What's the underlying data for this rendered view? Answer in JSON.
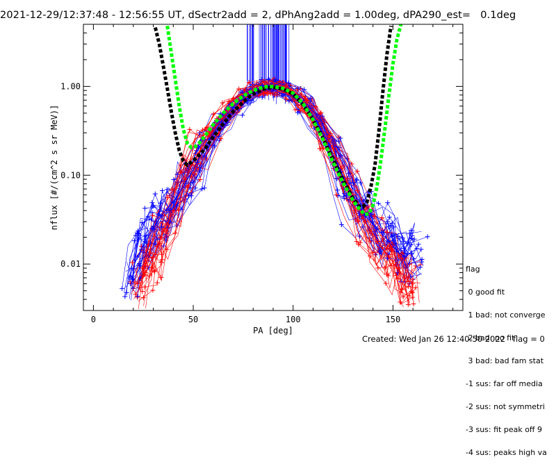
{
  "header": {
    "title": "2021-12-29/12:37:48 - 12:56:55 UT, dSectr2add = 2, dPhAng2add = 1.00deg, dPA290_est=   0.1deg"
  },
  "legend": {
    "title": "flag",
    "items": [
      " 0 good fit",
      " 1 bad: not converge",
      " 2 bad: no fit",
      " 3 bad: bad fam stat",
      "-1 sus: far off media",
      "-2 sus: not symmetri",
      "-3 sus: fit peak off 9",
      "-4 sus: peaks high va"
    ]
  },
  "footer": {
    "created": "Created: Wed Jan 26 12:40:50 2022   flag = 0"
  },
  "chart_data": {
    "type": "line",
    "title": "2021-12-29/12:37:48 - 12:56:55 UT, dSectr2add = 2, dPhAng2add = 1.00deg, dPA290_est=   0.1deg",
    "xlabel": "PA [deg]",
    "ylabel": "nflux [#/(cm^2 s sr MeV)]",
    "xlim": [
      -5,
      185
    ],
    "ylim": [
      0.003,
      5
    ],
    "yscale": "log",
    "xticks": [
      0,
      50,
      100,
      150
    ],
    "xtick_labels": [
      "0",
      "50",
      "100",
      "150"
    ],
    "yticks": [
      0.01,
      0.1,
      1.0
    ],
    "ytick_labels": [
      "0.01",
      "0.10",
      "1.00"
    ],
    "colors": {
      "red": "#ff0000",
      "blue": "#0000ff",
      "black": "#000000",
      "green": "#00ff00"
    },
    "series": [
      {
        "color": "red",
        "style": "thin lines with + markers (many measured PA distributions)",
        "x": [
          22,
          26,
          30,
          34,
          40,
          46,
          52,
          58,
          64,
          70,
          76,
          82,
          88,
          94,
          100,
          106,
          112,
          118,
          124,
          130,
          136,
          142,
          148,
          152,
          156,
          160
        ],
        "y": [
          0.006,
          0.008,
          0.012,
          0.02,
          0.04,
          0.09,
          0.17,
          0.28,
          0.42,
          0.6,
          0.8,
          0.95,
          1.0,
          0.97,
          0.85,
          0.65,
          0.42,
          0.24,
          0.12,
          0.06,
          0.03,
          0.018,
          0.012,
          0.009,
          0.007,
          0.006
        ]
      },
      {
        "color": "blue",
        "style": "thin lines with + markers (many measured PA distributions)",
        "x": [
          18,
          22,
          26,
          30,
          34,
          40,
          46,
          52,
          58,
          64,
          70,
          76,
          82,
          88,
          94,
          100,
          106,
          112,
          118,
          124,
          130,
          136,
          142,
          148,
          152,
          156,
          162
        ],
        "y": [
          0.007,
          0.012,
          0.018,
          0.025,
          0.035,
          0.05,
          0.08,
          0.14,
          0.25,
          0.4,
          0.58,
          0.78,
          0.92,
          0.98,
          0.95,
          0.83,
          0.62,
          0.4,
          0.22,
          0.11,
          0.055,
          0.035,
          0.025,
          0.018,
          0.014,
          0.012,
          0.015
        ]
      },
      {
        "name": "",
        "color": "black",
        "style": "thick dashed fit curve",
        "x": [
          31,
          33,
          35,
          37,
          39,
          41,
          43,
          45,
          47,
          49,
          52,
          56,
          60,
          65,
          70,
          75,
          80,
          85,
          88,
          91,
          95,
          100,
          105,
          110,
          115,
          120,
          125,
          130,
          133,
          135,
          137,
          139,
          141,
          143,
          145,
          147,
          149
        ],
        "y": [
          4.6,
          3.0,
          1.7,
          0.95,
          0.52,
          0.3,
          0.19,
          0.145,
          0.13,
          0.14,
          0.16,
          0.2,
          0.27,
          0.38,
          0.52,
          0.67,
          0.82,
          0.93,
          0.97,
          0.97,
          0.93,
          0.82,
          0.62,
          0.42,
          0.26,
          0.15,
          0.088,
          0.055,
          0.045,
          0.044,
          0.05,
          0.075,
          0.13,
          0.32,
          0.9,
          2.3,
          4.8
        ]
      },
      {
        "name": "",
        "color": "green",
        "style": "thick dashed fit curve",
        "x": [
          37,
          39,
          41,
          43,
          45,
          47,
          49,
          51,
          53,
          56,
          60,
          65,
          70,
          75,
          80,
          85,
          88,
          91,
          95,
          100,
          105,
          110,
          115,
          120,
          125,
          130,
          133,
          136,
          138,
          140,
          142,
          144,
          146,
          148,
          150,
          152,
          154
        ],
        "y": [
          4.8,
          2.4,
          1.2,
          0.6,
          0.33,
          0.23,
          0.205,
          0.21,
          0.23,
          0.28,
          0.37,
          0.5,
          0.64,
          0.78,
          0.9,
          0.98,
          1.0,
          0.99,
          0.95,
          0.84,
          0.64,
          0.42,
          0.25,
          0.14,
          0.082,
          0.052,
          0.042,
          0.036,
          0.037,
          0.046,
          0.075,
          0.15,
          0.34,
          0.8,
          1.8,
          3.4,
          5.0
        ]
      }
    ],
    "spikes": {
      "color": "blue",
      "description": "vertical blue lines reaching the top of the plot between PA 75 and 100",
      "x_range": [
        75,
        100
      ]
    },
    "grid": false,
    "legend_position": "lower-right, outside plot"
  }
}
